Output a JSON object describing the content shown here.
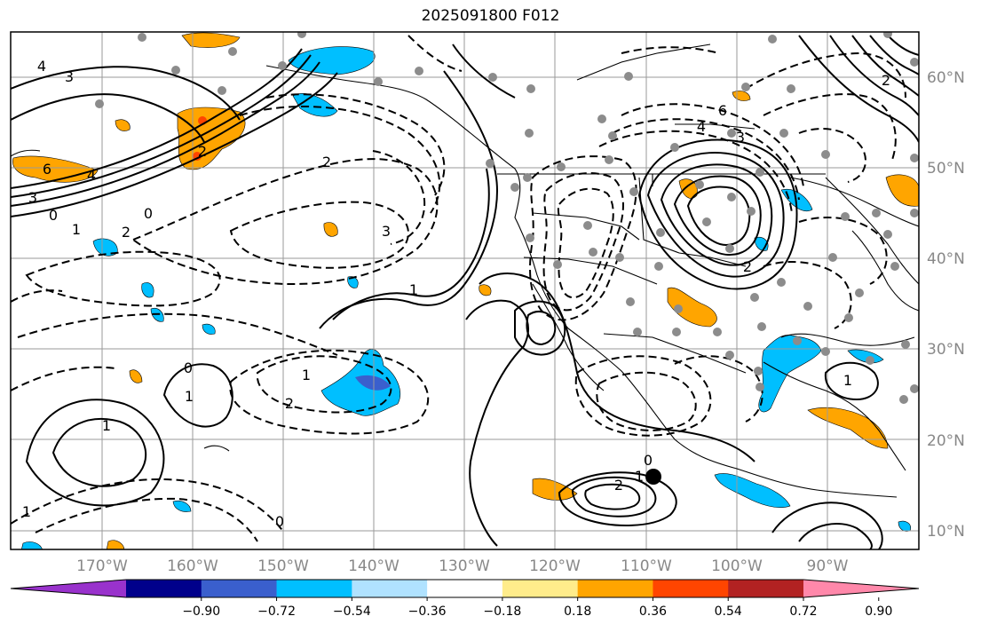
{
  "title": "2025091800 F012",
  "map": {
    "lat_labels": [
      "60°N",
      "50°N",
      "40°N",
      "30°N",
      "20°N",
      "10°N"
    ],
    "lon_labels": [
      "170°W",
      "160°W",
      "150°W",
      "140°W",
      "130°W",
      "120°W",
      "110°W",
      "100°W",
      "90°W"
    ],
    "contour_labels": [
      "4",
      "3",
      "6",
      "4",
      "3",
      "0",
      "1",
      "2",
      "2",
      "3",
      "1",
      "2",
      "0",
      "1",
      "1",
      "2",
      "0",
      "1",
      "0",
      "2",
      "1",
      "4",
      "6",
      "3",
      "2",
      "0",
      "1",
      "2",
      "1"
    ],
    "colors": {
      "land_outline": "#000000",
      "grid": "#9a9a9a",
      "station_dot": "#8c8c8c",
      "marker": "#000000"
    }
  },
  "colorbar": {
    "colors": [
      "#9932cc",
      "#00008b",
      "#3a5fcd",
      "#00bfff",
      "#b0e2ff",
      "#ffffff",
      "#ffec8b",
      "#ffa500",
      "#ff4500",
      "#b22222",
      "#ff88aa"
    ],
    "tick_labels": [
      "−0.90",
      "−0.72",
      "−0.54",
      "−0.36",
      "−0.18",
      "0.18",
      "0.36",
      "0.54",
      "0.72",
      "0.90"
    ]
  }
}
